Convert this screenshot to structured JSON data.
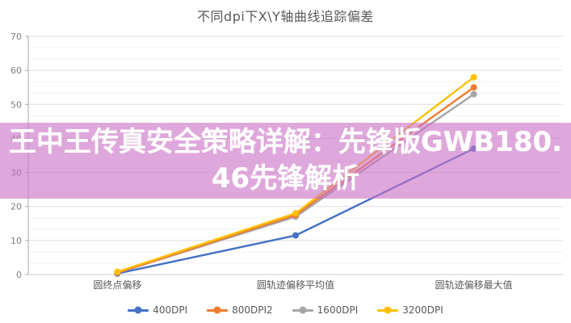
{
  "title": "不同dpi下X\\Y轴曲线追踪偏差",
  "banner": {
    "text": "王中王传真安全策略详解：先锋版GWB180.46先锋解析",
    "background": "rgba(203,114,199,0.62)",
    "text_color": "#ffffff"
  },
  "chart_data": {
    "type": "line",
    "title": "不同dpi下X\\Y轴曲线追踪偏差",
    "categories": [
      "圆终点偏移",
      "圆轨迹偏移平均值",
      "圆轨迹偏移最大值"
    ],
    "series": [
      {
        "name": "400DPI",
        "color": "#4472c4",
        "values": [
          0.3,
          11.5,
          37
        ]
      },
      {
        "name": "800DPI2",
        "color": "#ed7d31",
        "values": [
          0.5,
          17.5,
          55
        ]
      },
      {
        "name": "1600DPI",
        "color": "#a5a5a5",
        "values": [
          0.5,
          17.0,
          53
        ]
      },
      {
        "name": "3200DPI",
        "color": "#ffc000",
        "values": [
          0.8,
          18.0,
          58
        ]
      }
    ],
    "xlabel": "",
    "ylabel": "",
    "ylim": [
      0,
      70
    ],
    "y_major_step": 10,
    "y_minor_divisions": 3,
    "grid": true,
    "legend_position": "bottom",
    "colors": {
      "major_grid": "#dedede",
      "minor_grid": "#f3f3f3",
      "axis_line": "#a9a9a9",
      "tick_label": "#7f7f7f",
      "category_label": "#595959"
    }
  }
}
